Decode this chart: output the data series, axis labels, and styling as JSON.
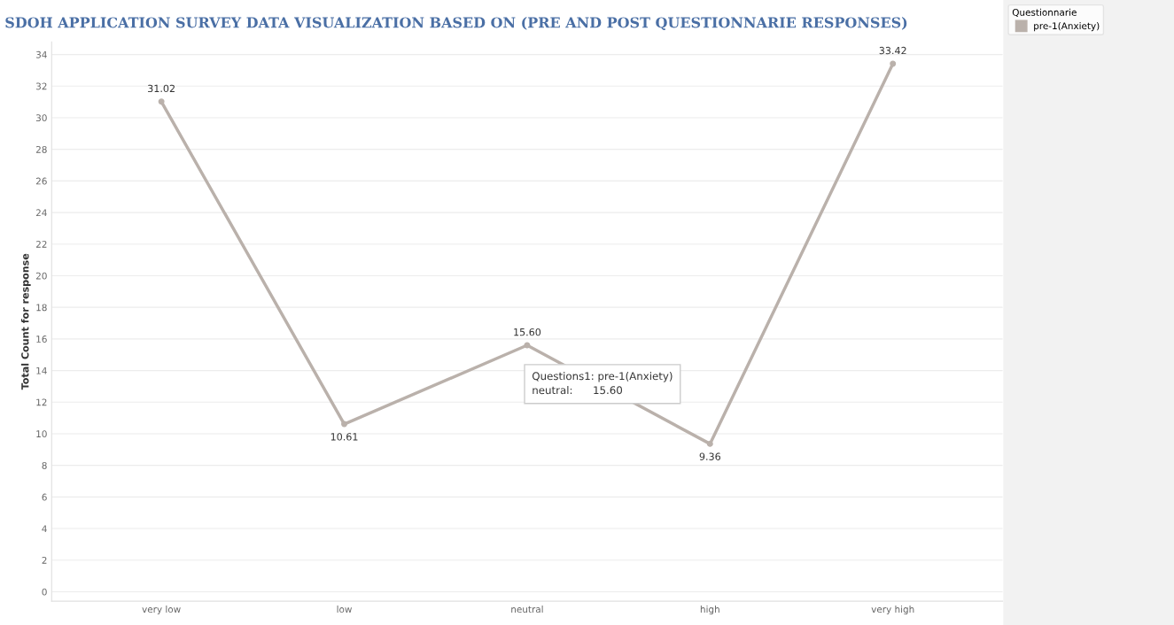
{
  "chart_data": {
    "type": "line",
    "title": "SDOH APPLICATION SURVEY DATA VISUALIZATION BASED ON (PRE AND POST QUESTIONNARIE RESPONSES)",
    "ylabel": "Total Count for response",
    "legend_title": "Questionnarie",
    "categories": [
      "very low",
      "low",
      "neutral",
      "high",
      "very high"
    ],
    "series": [
      {
        "name": "pre-1(Anxiety)",
        "color": "#bab1ab",
        "values": [
          31.02,
          10.61,
          15.6,
          9.36,
          33.42
        ],
        "value_labels": [
          "31.02",
          "10.61",
          "15.60",
          "9.36",
          "33.42"
        ]
      }
    ],
    "ylim": [
      -0.6,
      34.8
    ],
    "yticks": [
      0,
      2,
      4,
      6,
      8,
      10,
      12,
      14,
      16,
      18,
      20,
      22,
      24,
      26,
      28,
      30,
      32,
      34
    ],
    "grid": "y",
    "legend": "top right",
    "marker": "circle",
    "line_style": "solid",
    "annotations": [
      "Questions1: pre-1(Anxiety)",
      "neutral:      15.60"
    ]
  }
}
